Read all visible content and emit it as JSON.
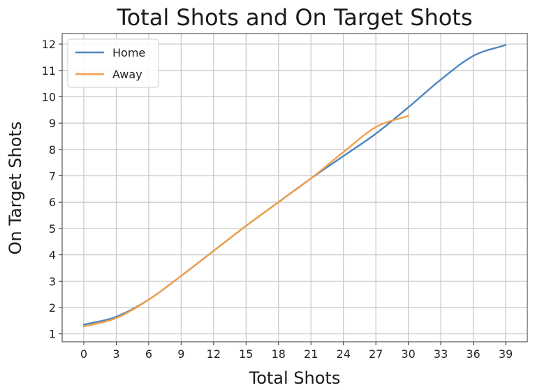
{
  "chart_data": {
    "type": "line",
    "title": "Total Shots and On Target Shots",
    "xlabel": "Total Shots",
    "ylabel": "On Target Shots",
    "xlim": [
      -2,
      41
    ],
    "ylim": [
      0.7,
      12.4
    ],
    "xticks": [
      0,
      3,
      6,
      9,
      12,
      15,
      18,
      21,
      24,
      27,
      30,
      33,
      36,
      39
    ],
    "yticks": [
      1,
      2,
      3,
      4,
      5,
      6,
      7,
      8,
      9,
      10,
      11,
      12
    ],
    "grid": true,
    "legend_position": "top-left",
    "series": [
      {
        "name": "Home",
        "color": "#4e86c0",
        "x": [
          0,
          3,
          6,
          9,
          12,
          15,
          18,
          21,
          24,
          27,
          30,
          33,
          36,
          39
        ],
        "y": [
          1.35,
          1.65,
          2.3,
          3.2,
          4.15,
          5.1,
          6.0,
          6.9,
          7.75,
          8.6,
          9.6,
          10.65,
          11.55,
          11.97
        ]
      },
      {
        "name": "Away",
        "color": "#f0a04a",
        "x": [
          0,
          3,
          6,
          9,
          12,
          15,
          18,
          21,
          24,
          27,
          30
        ],
        "y": [
          1.28,
          1.6,
          2.3,
          3.2,
          4.15,
          5.1,
          6.0,
          6.9,
          7.9,
          8.85,
          9.28
        ]
      }
    ]
  }
}
